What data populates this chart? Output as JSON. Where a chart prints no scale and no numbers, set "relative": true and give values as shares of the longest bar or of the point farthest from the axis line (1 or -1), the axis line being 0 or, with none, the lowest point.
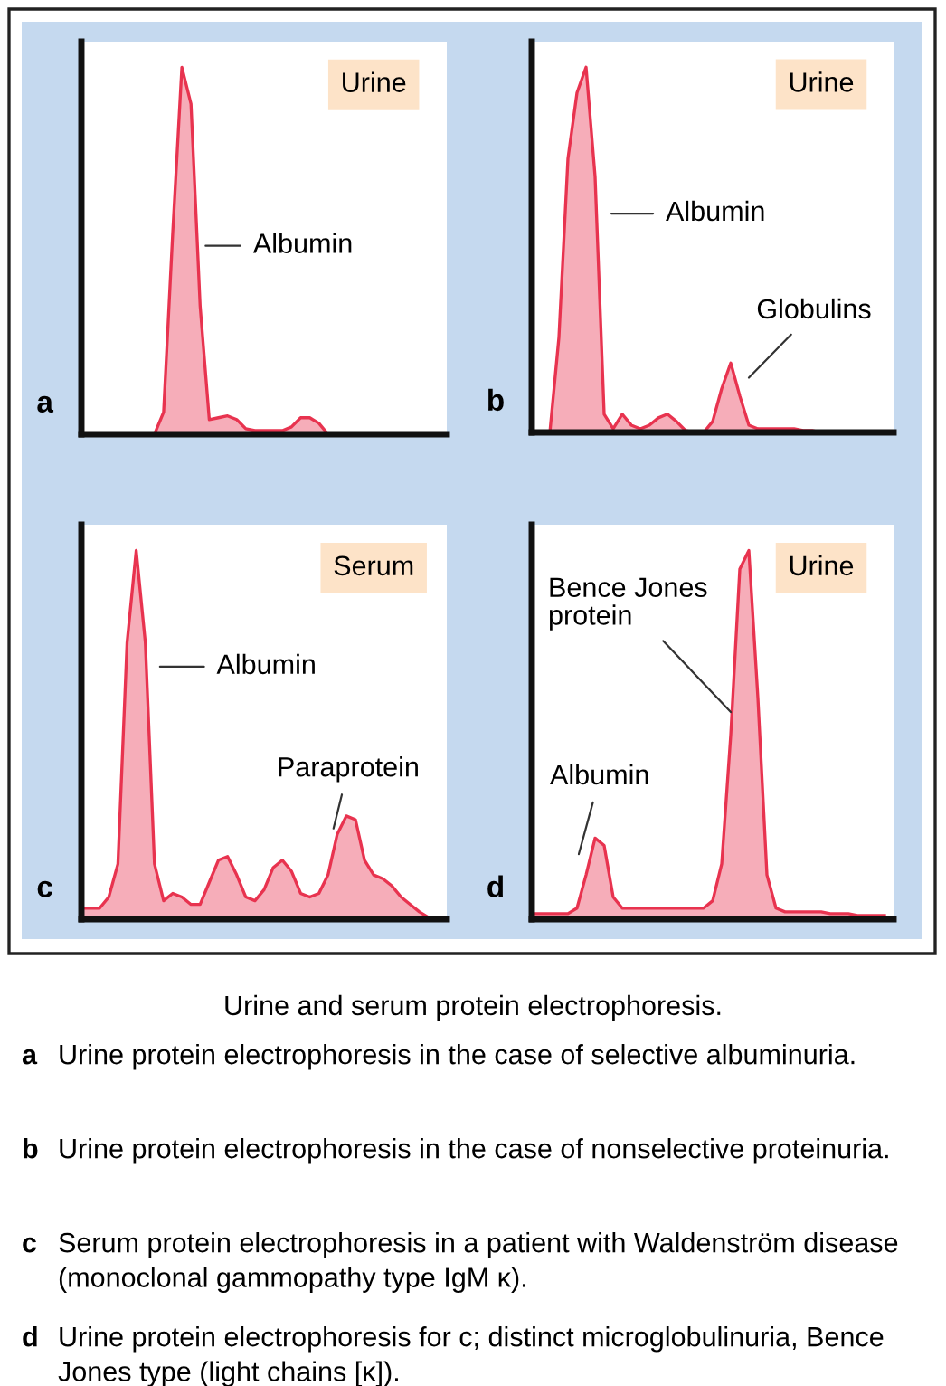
{
  "chart_data": [
    {
      "type": "area",
      "title": "a",
      "subtitle": "Urine",
      "relative": true,
      "color": "#e8334f",
      "annotations": [
        "Albumin"
      ],
      "categories": [
        null,
        null,
        null,
        null,
        null,
        null,
        null,
        null,
        null,
        null,
        null,
        null,
        null,
        null,
        null,
        null,
        null,
        null,
        null,
        null,
        null,
        null,
        null,
        null,
        null,
        null,
        null,
        null,
        null,
        null,
        null,
        null,
        null,
        null,
        null,
        null,
        null,
        null,
        null,
        null,
        null
      ],
      "values": [
        null,
        null,
        null,
        null,
        null,
        null,
        null,
        null,
        0,
        0.06,
        0.55,
        1,
        0.9,
        0.35,
        0.04,
        0.045,
        0.05,
        0.04,
        0.015,
        0.01,
        0.01,
        0.01,
        0.01,
        0.02,
        0.045,
        0.045,
        0.03,
        0,
        null,
        null,
        null,
        null,
        null,
        null,
        null,
        null,
        null,
        null,
        null,
        null,
        null
      ]
    },
    {
      "type": "area",
      "title": "b",
      "subtitle": "Urine",
      "relative": true,
      "color": "#e8334f",
      "annotations": [
        "Albumin",
        "Globulins"
      ],
      "categories": [
        null,
        null,
        null,
        null,
        null,
        null,
        null,
        null,
        null,
        null,
        null,
        null,
        null,
        null,
        null,
        null,
        null,
        null,
        null,
        null,
        null,
        null,
        null,
        null,
        null,
        null,
        null,
        null,
        null,
        null,
        null,
        null,
        null,
        null,
        null,
        null,
        null,
        null,
        null,
        null,
        null
      ],
      "values": [
        null,
        null,
        0,
        0.26,
        0.75,
        0.93,
        1,
        0.7,
        0.05,
        0.01,
        0.05,
        0.02,
        0.01,
        0.02,
        0.04,
        0.05,
        0.03,
        0.005,
        0,
        0,
        0.03,
        0.12,
        0.19,
        0.1,
        0.02,
        0.01,
        0.01,
        0.01,
        0.01,
        0.01,
        0.005,
        0.005,
        0,
        null,
        null,
        null,
        null,
        null,
        null,
        null,
        null
      ]
    },
    {
      "type": "area",
      "title": "c",
      "subtitle": "Serum",
      "relative": true,
      "color": "#e8334f",
      "annotations": [
        "Albumin",
        "Paraprotein"
      ],
      "categories": [
        null,
        null,
        null,
        null,
        null,
        null,
        null,
        null,
        null,
        null,
        null,
        null,
        null,
        null,
        null,
        null,
        null,
        null,
        null,
        null,
        null,
        null,
        null,
        null,
        null,
        null,
        null,
        null,
        null,
        null,
        null,
        null,
        null,
        null,
        null,
        null,
        null,
        null,
        null,
        null,
        null
      ],
      "values": [
        0.03,
        0.03,
        0.03,
        0.06,
        0.15,
        0.75,
        1,
        0.75,
        0.15,
        0.05,
        0.07,
        0.06,
        0.04,
        0.04,
        0.1,
        0.16,
        0.17,
        0.12,
        0.06,
        0.05,
        0.08,
        0.14,
        0.16,
        0.13,
        0.07,
        0.06,
        0.07,
        0.12,
        0.23,
        0.28,
        0.27,
        0.16,
        0.12,
        0.11,
        0.09,
        0.06,
        0.04,
        0.02,
        0.005,
        null,
        null
      ]
    },
    {
      "type": "area",
      "title": "d",
      "subtitle": "Urine",
      "relative": true,
      "color": "#e8334f",
      "annotations": [
        "Bence Jones\nprotein",
        "Albumin"
      ],
      "categories": [
        null,
        null,
        null,
        null,
        null,
        null,
        null,
        null,
        null,
        null,
        null,
        null,
        null,
        null,
        null,
        null,
        null,
        null,
        null,
        null,
        null,
        null,
        null,
        null,
        null,
        null,
        null,
        null,
        null,
        null,
        null,
        null,
        null,
        null,
        null,
        null,
        null,
        null,
        null,
        null,
        null
      ],
      "values": [
        0.015,
        0.015,
        0.015,
        0.015,
        0.015,
        0.03,
        0.12,
        0.22,
        0.2,
        0.06,
        0.03,
        0.03,
        0.03,
        0.03,
        0.03,
        0.03,
        0.03,
        0.03,
        0.03,
        0.03,
        0.05,
        0.15,
        0.5,
        0.95,
        1,
        0.6,
        0.12,
        0.03,
        0.02,
        0.02,
        0.02,
        0.02,
        0.02,
        0.015,
        0.015,
        0.015,
        0.01,
        0.01,
        0.01,
        0.01,
        null
      ]
    },
    {
      "type": "other",
      "title": "Urine and serum protein electrophoresis.",
      "annotations": [
        "a Urine protein electrophoresis in the case of selective albuminuria.",
        "b Urine protein electrophoresis in the case of nonselective proteinuria.",
        "c Serum protein electrophoresis in a patient with Waldenström disease (monoclonal gammopathy type IgM κ).",
        "d Urine protein electrophoresis for c; distinct microglobulinuria, Bence Jones type (light chains [κ])."
      ]
    }
  ]
}
